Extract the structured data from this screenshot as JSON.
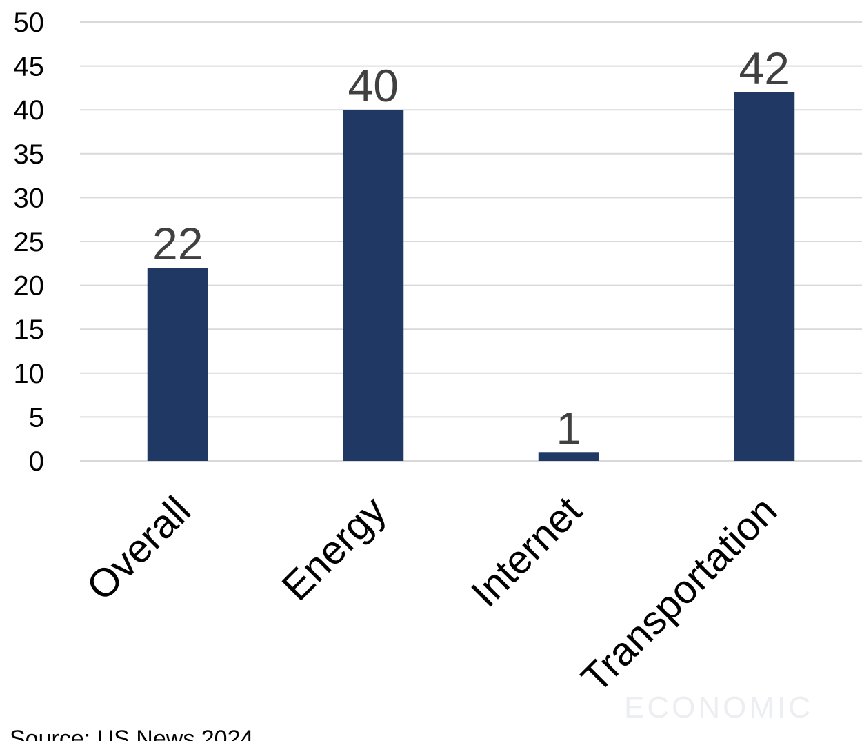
{
  "chart_data": {
    "type": "bar",
    "categories": [
      "Overall",
      "Energy",
      "Internet",
      "Transportation"
    ],
    "values": [
      22,
      40,
      1,
      42
    ],
    "data_labels": [
      "22",
      "40",
      "1",
      "42"
    ],
    "title": "",
    "xlabel": "",
    "ylabel": "",
    "ylim": [
      0,
      50
    ],
    "yticks": [
      "0",
      "5",
      "10",
      "15",
      "20",
      "25",
      "30",
      "35",
      "40",
      "45",
      "50"
    ],
    "grid": true,
    "legend": "none",
    "bar_color": "#203864"
  },
  "source": "Source: US News 2024",
  "watermark": "ECONOMIC"
}
